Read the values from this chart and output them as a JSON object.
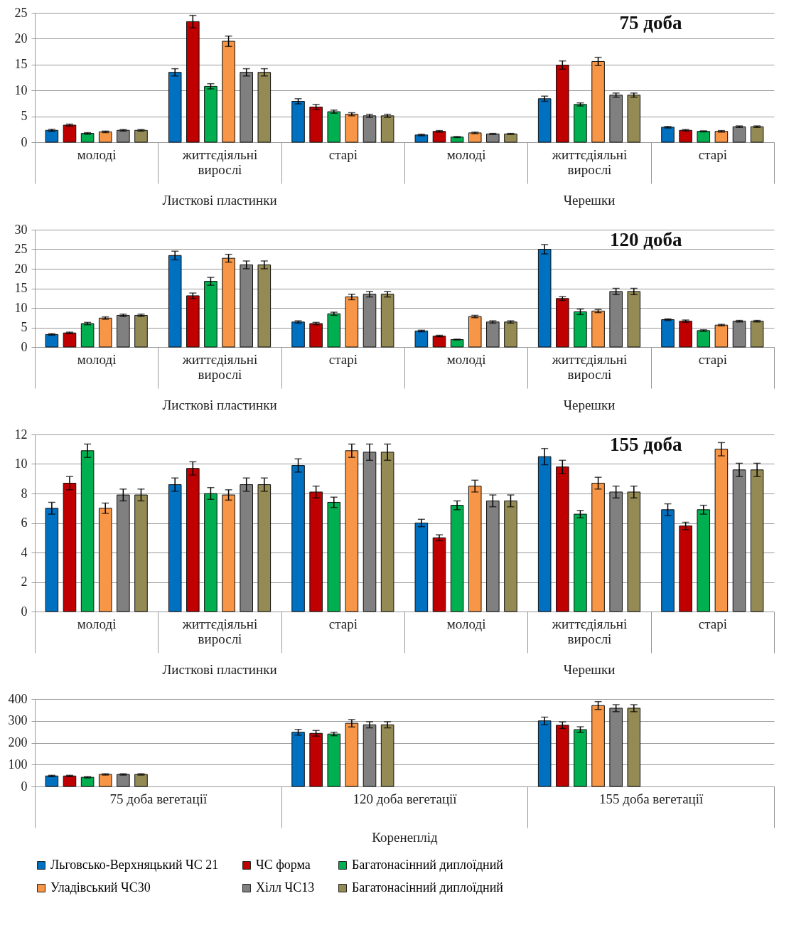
{
  "chart_data": [
    {
      "type": "bar",
      "title": "75 доба",
      "categories": [
        "молоді",
        "життєдіяльні вирослі",
        "старі",
        "молоді",
        "життєдіяльні вирослі",
        "старі"
      ],
      "annotations": [
        "Листкові пластинки",
        "Черешки"
      ],
      "ylim": [
        0,
        25
      ],
      "yticks": [
        0,
        5,
        10,
        15,
        20,
        25
      ],
      "grid": "y",
      "series": [
        {
          "color": "#0070c0",
          "values": [
            2.3,
            13.5,
            7.9,
            1.4,
            8.4,
            2.9
          ],
          "errors": [
            0.2,
            0.7,
            0.5,
            0.15,
            0.5,
            0.15
          ]
        },
        {
          "color": "#c00000",
          "values": [
            3.3,
            23.3,
            6.8,
            2.1,
            14.9,
            2.3
          ],
          "errors": [
            0.2,
            1.2,
            0.5,
            0.15,
            0.8,
            0.15
          ]
        },
        {
          "color": "#00b050",
          "values": [
            1.7,
            10.8,
            5.9,
            1.0,
            7.3,
            2.1
          ],
          "errors": [
            0.15,
            0.5,
            0.3,
            0.1,
            0.3,
            0.1
          ]
        },
        {
          "color": "#f79646",
          "values": [
            2.0,
            19.5,
            5.4,
            1.8,
            15.6,
            2.1
          ],
          "errors": [
            0.15,
            1.0,
            0.3,
            0.15,
            0.8,
            0.15
          ]
        },
        {
          "color": "#808080",
          "values": [
            2.3,
            13.5,
            5.1,
            1.6,
            9.1,
            3.0
          ],
          "errors": [
            0.15,
            0.7,
            0.3,
            0.1,
            0.4,
            0.15
          ]
        },
        {
          "color": "#948a54",
          "values": [
            2.3,
            13.5,
            5.1,
            1.6,
            9.1,
            3.0
          ],
          "errors": [
            0.15,
            0.7,
            0.3,
            0.1,
            0.4,
            0.15
          ]
        }
      ]
    },
    {
      "type": "bar",
      "title": "120 доба",
      "categories": [
        "молоді",
        "життєдіяльні вирослі",
        "старі",
        "молоді",
        "життєдіяльні вирослі",
        "старі"
      ],
      "annotations": [
        "Листкові пластинки",
        "Черешки"
      ],
      "ylim": [
        0,
        30
      ],
      "yticks": [
        0,
        5,
        10,
        15,
        20,
        25,
        30
      ],
      "grid": "y",
      "series": [
        {
          "color": "#0070c0",
          "values": [
            3.2,
            23.4,
            6.4,
            4.1,
            25.0,
            7.0
          ],
          "errors": [
            0.2,
            1.1,
            0.3,
            0.2,
            1.2,
            0.2
          ]
        },
        {
          "color": "#c00000",
          "values": [
            3.6,
            13.1,
            6.0,
            2.8,
            12.4,
            6.6
          ],
          "errors": [
            0.2,
            0.7,
            0.3,
            0.2,
            0.5,
            0.3
          ]
        },
        {
          "color": "#00b050",
          "values": [
            6.0,
            16.8,
            8.5,
            1.9,
            9.0,
            4.2
          ],
          "errors": [
            0.3,
            1.0,
            0.4,
            0.1,
            0.7,
            0.2
          ]
        },
        {
          "color": "#f79646",
          "values": [
            7.4,
            22.7,
            12.8,
            7.8,
            9.2,
            5.6
          ],
          "errors": [
            0.3,
            1.0,
            0.7,
            0.3,
            0.4,
            0.2
          ]
        },
        {
          "color": "#808080",
          "values": [
            8.1,
            21.0,
            13.5,
            6.4,
            14.2,
            6.6
          ],
          "errors": [
            0.3,
            1.0,
            0.7,
            0.3,
            0.8,
            0.2
          ]
        },
        {
          "color": "#948a54",
          "values": [
            8.1,
            21.0,
            13.5,
            6.4,
            14.2,
            6.6
          ],
          "errors": [
            0.3,
            1.0,
            0.7,
            0.3,
            0.8,
            0.2
          ]
        }
      ]
    },
    {
      "type": "bar",
      "title": "155 доба",
      "categories": [
        "молоді",
        "життєдіяльні вирослі",
        "старі",
        "молоді",
        "життєдіяльні вирослі",
        "старі"
      ],
      "annotations": [
        "Листкові пластинки",
        "Черешки"
      ],
      "ylim": [
        0,
        12
      ],
      "yticks": [
        0,
        2,
        4,
        6,
        8,
        10,
        12
      ],
      "grid": "y",
      "series": [
        {
          "color": "#0070c0",
          "values": [
            7.0,
            8.6,
            9.9,
            6.0,
            10.5,
            6.9
          ],
          "errors": [
            0.4,
            0.45,
            0.45,
            0.25,
            0.55,
            0.4
          ]
        },
        {
          "color": "#c00000",
          "values": [
            8.7,
            9.7,
            8.1,
            5.0,
            9.8,
            5.8
          ],
          "errors": [
            0.45,
            0.45,
            0.4,
            0.2,
            0.45,
            0.25
          ]
        },
        {
          "color": "#00b050",
          "values": [
            10.9,
            8.0,
            7.4,
            7.2,
            6.6,
            6.9
          ],
          "errors": [
            0.45,
            0.4,
            0.35,
            0.3,
            0.25,
            0.3
          ]
        },
        {
          "color": "#f79646",
          "values": [
            7.0,
            7.9,
            10.9,
            8.5,
            8.7,
            11.0
          ],
          "errors": [
            0.35,
            0.35,
            0.45,
            0.4,
            0.4,
            0.45
          ]
        },
        {
          "color": "#808080",
          "values": [
            7.9,
            8.6,
            10.8,
            7.5,
            8.1,
            9.6
          ],
          "errors": [
            0.4,
            0.45,
            0.55,
            0.4,
            0.4,
            0.45
          ]
        },
        {
          "color": "#948a54",
          "values": [
            7.9,
            8.6,
            10.8,
            7.5,
            8.1,
            9.6
          ],
          "errors": [
            0.4,
            0.45,
            0.55,
            0.4,
            0.4,
            0.45
          ]
        }
      ]
    },
    {
      "type": "bar",
      "categories": [
        "75 доба вегетації",
        "120 доба вегетації",
        "155 доба вегетації"
      ],
      "xlabel": "Коренеплід",
      "ylim": [
        0,
        400
      ],
      "yticks": [
        0,
        100,
        200,
        300,
        400
      ],
      "grid": "y",
      "legend": "bottom",
      "series": [
        {
          "name": "Льговсько-Верхняцький ЧС 21",
          "color": "#0070c0",
          "values": [
            48,
            248,
            300
          ],
          "errors": [
            3,
            13,
            17
          ]
        },
        {
          "name": "ЧС форма",
          "color": "#c00000",
          "values": [
            48,
            243,
            280
          ],
          "errors": [
            3,
            13,
            15
          ]
        },
        {
          "name": "Багатонасінний диплоїдний",
          "color": "#00b050",
          "values": [
            42,
            240,
            260
          ],
          "errors": [
            3,
            8,
            13
          ]
        },
        {
          "name": "Уладівський  ЧС30",
          "color": "#f79646",
          "values": [
            55,
            289,
            370
          ],
          "errors": [
            3,
            17,
            18
          ]
        },
        {
          "name": "Хілл ЧС13",
          "color": "#808080",
          "values": [
            55,
            282,
            358
          ],
          "errors": [
            3,
            14,
            16
          ]
        },
        {
          "name": "Багатонасінний диплоїдний",
          "color": "#948a54",
          "values": [
            55,
            282,
            358
          ],
          "errors": [
            3,
            14,
            16
          ]
        }
      ]
    }
  ]
}
